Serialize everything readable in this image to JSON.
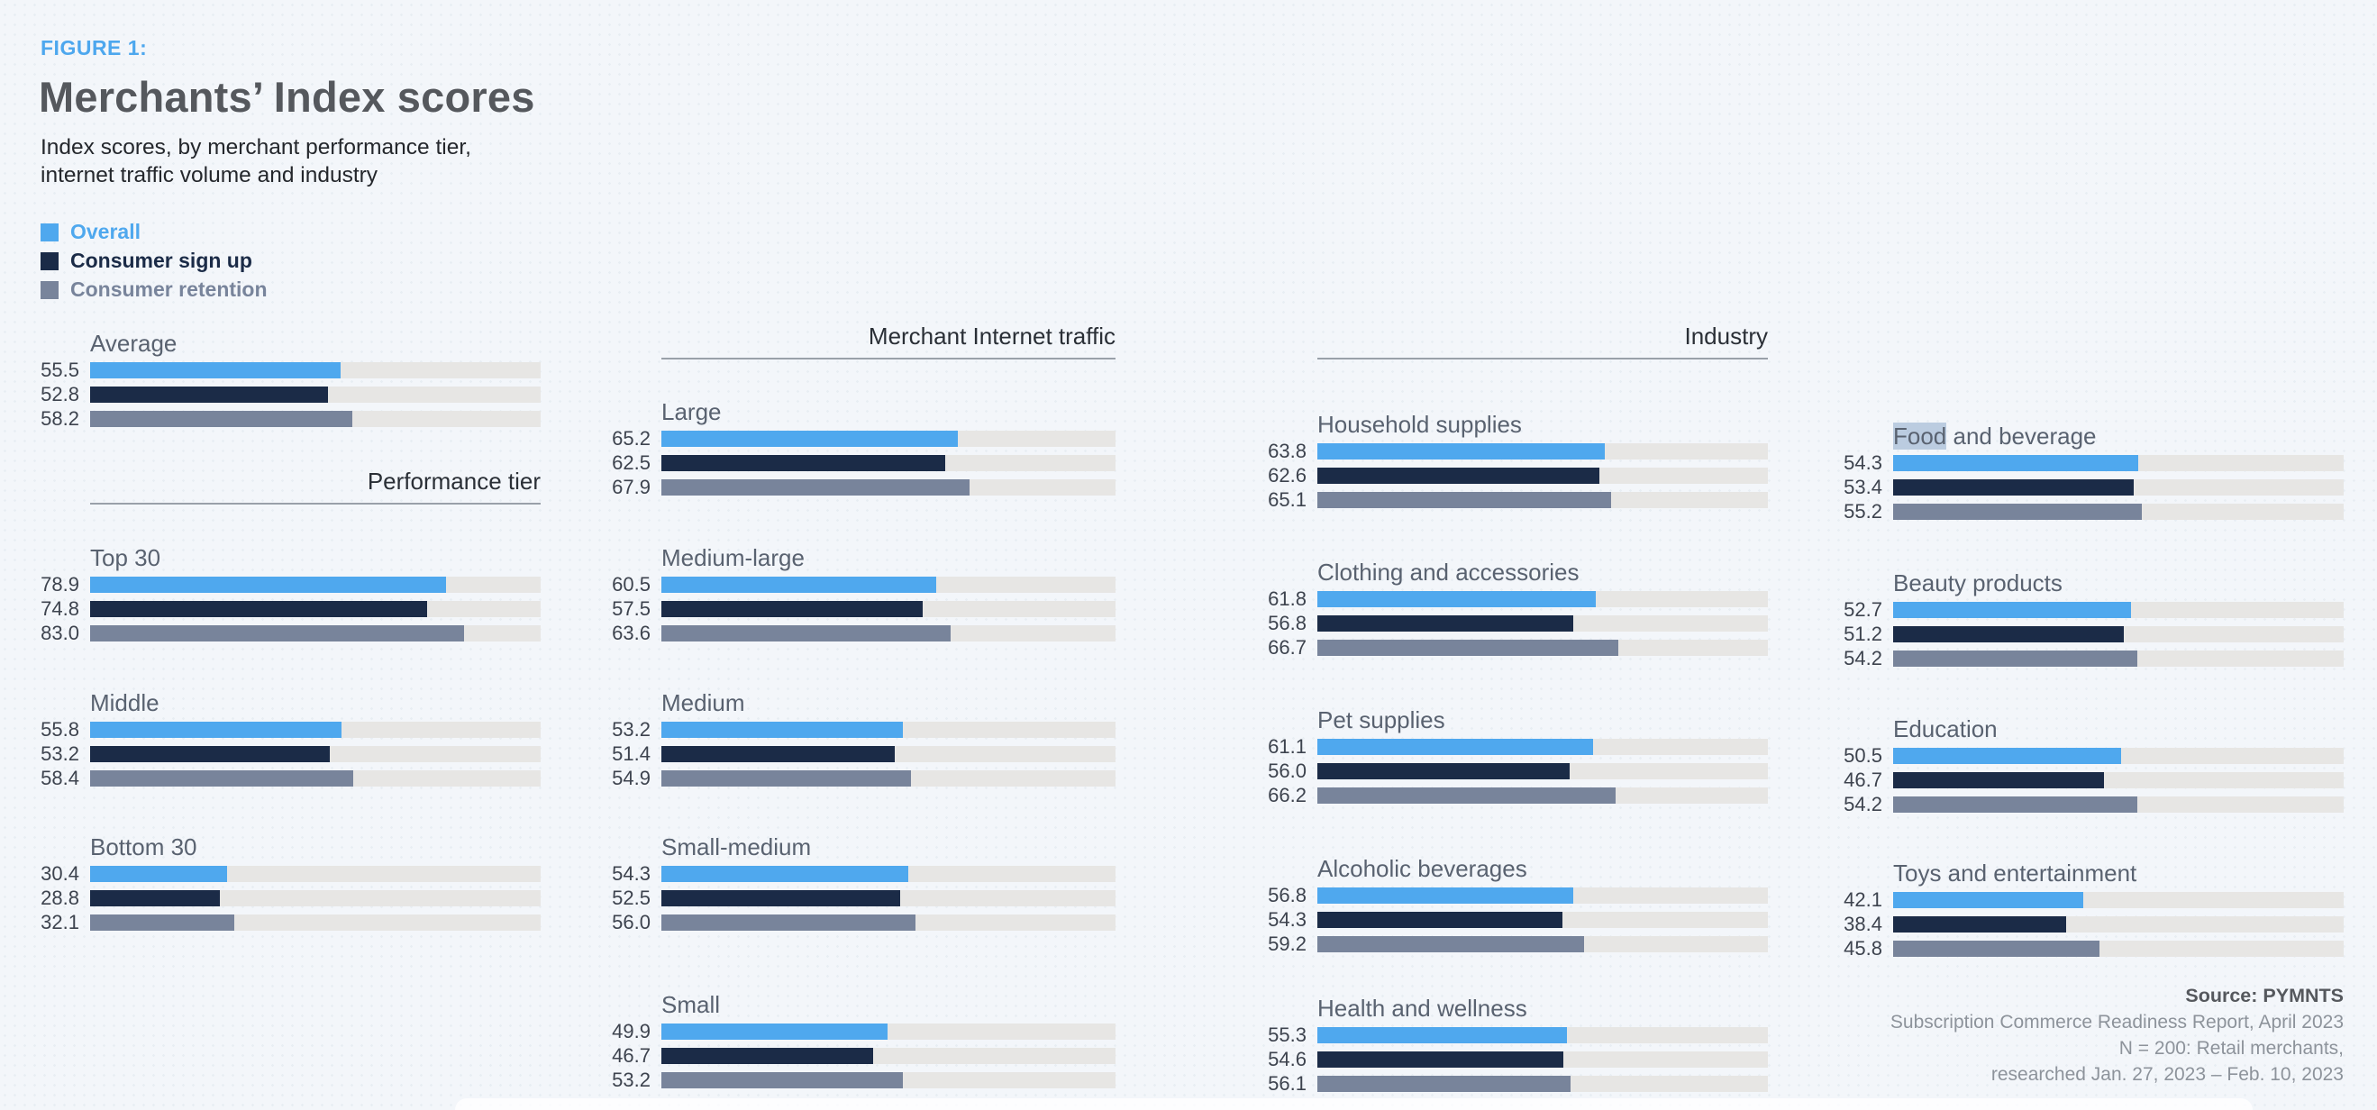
{
  "figure_label": "FIGURE 1:",
  "title": "Merchants’ Index scores",
  "subtitle_lines": [
    "Index scores, by merchant performance tier,",
    "internet traffic volume and industry"
  ],
  "legend": [
    {
      "label": "Overall",
      "color": "#4fa8ee"
    },
    {
      "label": "Consumer sign up",
      "color": "#1b2b47"
    },
    {
      "label": "Consumer retention",
      "color": "#78849b"
    }
  ],
  "group_headers": [
    {
      "label": "Performance tier",
      "column": 0
    },
    {
      "label": "Merchant Internet traffic",
      "column": 1
    },
    {
      "label": "Industry",
      "column": 2
    }
  ],
  "selection": {
    "highlighted_text": "Food",
    "highlight_color": "#b3c6da"
  },
  "chart_data": {
    "type": "bar",
    "orientation": "horizontal",
    "xlim": [
      0,
      100
    ],
    "grid": false,
    "series_names": [
      "Overall",
      "Consumer sign up",
      "Consumer retention"
    ],
    "series_colors": [
      "#4fa8ee",
      "#1b2b47",
      "#78849b"
    ],
    "track_color": "#e7e6e4",
    "columns": [
      {
        "sections": [
          {
            "id": "average",
            "title": "Average",
            "values": [
              "55.5",
              "52.8",
              "58.2"
            ]
          },
          {
            "id": "top-30",
            "title": "Top 30",
            "values": [
              "78.9",
              "74.8",
              "83.0"
            ]
          },
          {
            "id": "middle",
            "title": "Middle",
            "values": [
              "55.8",
              "53.2",
              "58.4"
            ]
          },
          {
            "id": "bottom-30",
            "title": "Bottom 30",
            "values": [
              "30.4",
              "28.8",
              "32.1"
            ]
          }
        ]
      },
      {
        "sections": [
          {
            "id": "large",
            "title": "Large",
            "values": [
              "65.2",
              "62.5",
              "67.9"
            ]
          },
          {
            "id": "medium-large",
            "title": "Medium-large",
            "values": [
              "60.5",
              "57.5",
              "63.6"
            ]
          },
          {
            "id": "medium",
            "title": "Medium",
            "values": [
              "53.2",
              "51.4",
              "54.9"
            ]
          },
          {
            "id": "small-medium",
            "title": "Small-medium",
            "values": [
              "54.3",
              "52.5",
              "56.0"
            ]
          },
          {
            "id": "small",
            "title": "Small",
            "values": [
              "49.9",
              "46.7",
              "53.2"
            ]
          }
        ]
      },
      {
        "sections": [
          {
            "id": "household-supplies",
            "title": "Household supplies",
            "values": [
              "63.8",
              "62.6",
              "65.1"
            ]
          },
          {
            "id": "clothing-and-accessories",
            "title": "Clothing and accessories",
            "values": [
              "61.8",
              "56.8",
              "66.7"
            ]
          },
          {
            "id": "pet-supplies",
            "title": "Pet supplies",
            "values": [
              "61.1",
              "56.0",
              "66.2"
            ]
          },
          {
            "id": "alcoholic-beverages",
            "title": "Alcoholic beverages",
            "values": [
              "56.8",
              "54.3",
              "59.2"
            ]
          },
          {
            "id": "health-and-wellness",
            "title": "Health and wellness",
            "values": [
              "55.3",
              "54.6",
              "56.1"
            ]
          }
        ]
      },
      {
        "sections": [
          {
            "id": "food-and-beverage",
            "title": "Food and beverage",
            "title_highlight": "Food",
            "values": [
              "54.3",
              "53.4",
              "55.2"
            ]
          },
          {
            "id": "beauty-products",
            "title": "Beauty products",
            "values": [
              "52.7",
              "51.2",
              "54.2"
            ]
          },
          {
            "id": "education",
            "title": "Education",
            "values": [
              "50.5",
              "46.7",
              "54.2"
            ]
          },
          {
            "id": "toys-and-entertainment",
            "title": "Toys and entertainment",
            "values": [
              "42.1",
              "38.4",
              "45.8"
            ]
          }
        ]
      }
    ]
  },
  "source": {
    "lines": [
      "Source: PYMNTS",
      "Subscription Commerce Readiness Report, April 2023",
      "N = 200: Retail merchants,",
      "researched Jan. 27, 2023 – Feb. 10, 2023"
    ]
  }
}
